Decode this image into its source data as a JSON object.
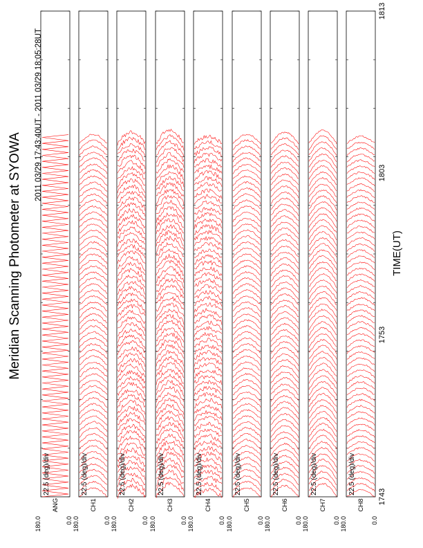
{
  "chart_data": {
    "type": "line",
    "orientation": "rotated-90-ccw",
    "title": "Meridian Scanning Photometer at SYOWA",
    "subtitle": "2011 03/29 17:43:40UT - 2011 03/29 18:05:28UT",
    "xlabel": "TIME(UT)",
    "time_ticks": [
      "1743",
      "1753",
      "1803",
      "1813"
    ],
    "time_range": [
      "17:43:40",
      "18:05:28"
    ],
    "data_end_fraction": 0.74,
    "series_color": "#ff0000",
    "panels": [
      {
        "label": "ANG",
        "scale": "22.5 (deg)/div",
        "ymax": "180.0",
        "ymin": "0.0",
        "kind": "sawtooth"
      },
      {
        "label": "CH1",
        "scale": "22.5 (deg)/div",
        "ymax": "180.0",
        "ymin": "0.0",
        "kind": "profile"
      },
      {
        "label": "CH2",
        "scale": "22.5 (deg)/div",
        "ymax": "180.0",
        "ymin": "0.0",
        "kind": "profile"
      },
      {
        "label": "CH3",
        "scale": "22.5 (deg)/div",
        "ymax": "180.0",
        "ymin": "0.0",
        "kind": "profile"
      },
      {
        "label": "CH4",
        "scale": "22.5 (deg)/div",
        "ymax": "180.0",
        "ymin": "0.0",
        "kind": "profile"
      },
      {
        "label": "CH5",
        "scale": "22.5 (deg)/div",
        "ymax": "180.0",
        "ymin": "0.0",
        "kind": "profile"
      },
      {
        "label": "CH6",
        "scale": "22.5 (deg)/div",
        "ymax": "180.0",
        "ymin": "0.0",
        "kind": "profile"
      },
      {
        "label": "CH7",
        "scale": "22.5 (deg)/div",
        "ymax": "180.0",
        "ymin": "0.0",
        "kind": "profile"
      },
      {
        "label": "CH8",
        "scale": "22.5 (deg)/div",
        "ymax": "180.0",
        "ymin": "0.0",
        "kind": "profile"
      }
    ]
  }
}
